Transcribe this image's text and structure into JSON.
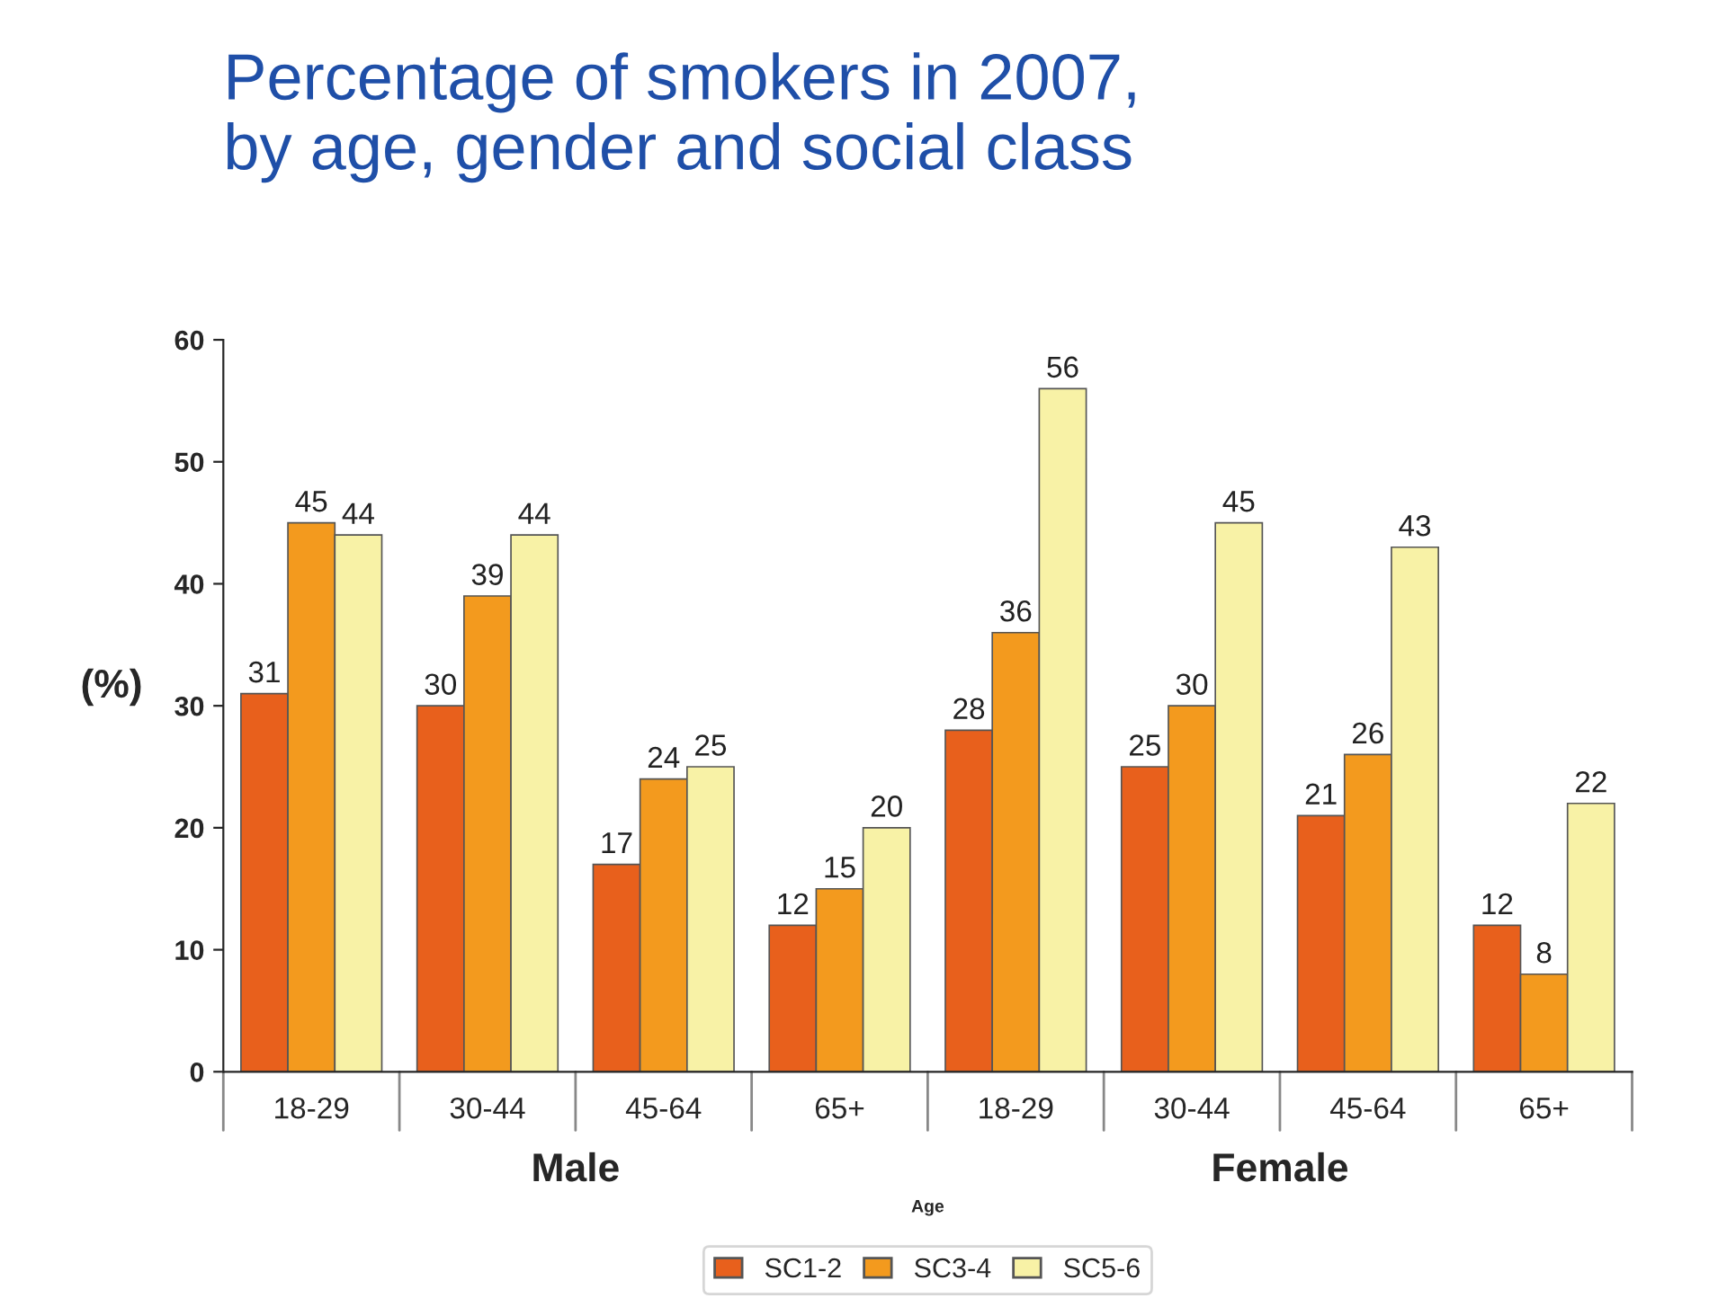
{
  "chart_data": {
    "type": "bar",
    "title": "Percentage of smokers in 2007,\nby age, gender and social class",
    "categories": [
      "18-29",
      "30-44",
      "45-64",
      "65+",
      "18-29",
      "30-44",
      "45-64",
      "65+"
    ],
    "series": [
      {
        "name": "SC1-2",
        "color": "#e8601c",
        "values": [
          31,
          30,
          17,
          12,
          28,
          25,
          21,
          12
        ]
      },
      {
        "name": "SC3-4",
        "color": "#f39a1e",
        "values": [
          45,
          39,
          24,
          15,
          36,
          30,
          26,
          8
        ]
      },
      {
        "name": "SC5-6",
        "color": "#f8f2a6",
        "values": [
          44,
          44,
          25,
          20,
          56,
          45,
          43,
          22
        ]
      }
    ],
    "ylabel": "(%)",
    "xlabel": "Age",
    "annotations": [
      "Male",
      "Female"
    ],
    "ylim": [
      0,
      60
    ],
    "yticks": [
      0,
      10,
      20,
      30,
      40,
      50,
      60
    ],
    "data_labels": true,
    "grid": false,
    "legend": "bottom"
  }
}
